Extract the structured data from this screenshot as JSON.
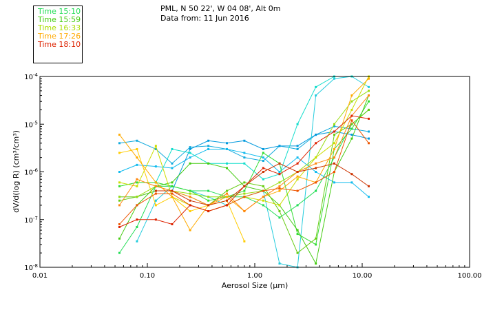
{
  "header": {
    "line1": "PML, N 50 22', W 04 08', Alt 0m",
    "line2": "Data from: 11 Jun 2016"
  },
  "legend": [
    {
      "label": "Time 15:10",
      "color": "#22dd55"
    },
    {
      "label": "Time 15:59",
      "color": "#44cc11"
    },
    {
      "label": "Time 16:33",
      "color": "#aadd00"
    },
    {
      "label": "Time 17:26",
      "color": "#ffaa00"
    },
    {
      "label": "Time 18:10",
      "color": "#dd2200"
    }
  ],
  "chart_data": {
    "type": "line",
    "x_scale": "log",
    "y_scale": "log",
    "xlim": [
      0.01,
      100
    ],
    "ylim": [
      1e-08,
      0.0001
    ],
    "xlabel": "Aerosol Size (µm)",
    "ylabel": "dV/d(log R) (cm³/cm³)",
    "x_ticks": [
      {
        "v": 0.01,
        "label": "0.01"
      },
      {
        "v": 0.1,
        "label": "0.10"
      },
      {
        "v": 1,
        "label": "1.00"
      },
      {
        "v": 10,
        "label": "10.00"
      },
      {
        "v": 100,
        "label": "100.00"
      }
    ],
    "y_ticks": [
      {
        "v": 0.0001,
        "base": "10",
        "exp": "-4"
      },
      {
        "v": 1e-05,
        "base": "10",
        "exp": "-5"
      },
      {
        "v": 1e-06,
        "base": "10",
        "exp": "-6"
      },
      {
        "v": 1e-07,
        "base": "10",
        "exp": "-7"
      },
      {
        "v": 1e-08,
        "base": "10",
        "exp": "-8"
      }
    ],
    "x": [
      0.055,
      0.08,
      0.12,
      0.17,
      0.25,
      0.37,
      0.55,
      0.8,
      1.2,
      1.7,
      2.5,
      3.7,
      5.5,
      8,
      11.5
    ],
    "series": [
      {
        "color": "#11aadd",
        "values": [
          4e-06,
          4.5e-06,
          3e-06,
          1.5e-06,
          3.3e-06,
          3.5e-06,
          3e-06,
          2e-06,
          1.7e-06,
          3.5e-06,
          3e-06,
          6e-06,
          9e-06,
          8e-06,
          7e-06
        ]
      },
      {
        "color": "#11bbee",
        "values": [
          1e-06,
          1.4e-06,
          1.3e-06,
          1.2e-06,
          2e-06,
          3e-06,
          3e-06,
          2.5e-06,
          2e-06,
          1e-06,
          2e-06,
          1e-06,
          6e-07,
          6e-07,
          3e-07
        ]
      },
      {
        "color": "#0099dd",
        "values": [
          3e-07,
          3e-07,
          4e-07,
          4e-07,
          3e-06,
          4.5e-06,
          4e-06,
          4.5e-06,
          3e-06,
          3.5e-06,
          3.5e-06,
          6e-06,
          7e-06,
          6e-06,
          5e-06
        ]
      },
      {
        "color": "#22ccdd",
        "values": [
          null,
          3.5e-08,
          2.5e-07,
          5e-07,
          4e-07,
          3e-07,
          2e-07,
          3e-07,
          4e-07,
          1.2e-08,
          1e-08,
          4e-05,
          9e-05,
          0.0001,
          6e-05
        ]
      },
      {
        "color": "#11ddcc",
        "values": [
          null,
          null,
          6e-07,
          3e-06,
          2.5e-06,
          1.5e-06,
          1.5e-06,
          1.5e-06,
          7e-07,
          9e-07,
          1e-05,
          6e-05,
          0.0001,
          0.00011,
          null
        ]
      },
      {
        "color": "#22dd55",
        "values": [
          2e-08,
          7e-08,
          5e-07,
          5e-07,
          4e-07,
          4e-07,
          3e-07,
          3e-07,
          2e-07,
          1.1e-07,
          2e-07,
          4e-07,
          2e-06,
          1e-05,
          2e-05
        ]
      },
      {
        "color": "#33dd33",
        "values": [
          5e-07,
          6e-07,
          6e-07,
          5e-07,
          4e-07,
          2.5e-07,
          3e-07,
          4e-07,
          2.5e-06,
          1.5e-06,
          5e-08,
          3e-08,
          3e-06,
          8e-06,
          3e-05
        ]
      },
      {
        "color": "#44cc11",
        "values": [
          4e-08,
          2e-07,
          5e-07,
          6e-07,
          1.5e-06,
          1.5e-06,
          1.2e-06,
          5e-07,
          4e-07,
          2e-07,
          6e-08,
          1.2e-08,
          1e-06,
          5e-06,
          4e-05
        ]
      },
      {
        "color": "#66cc11",
        "values": [
          2.5e-07,
          3e-07,
          4e-07,
          4e-07,
          3e-07,
          2e-07,
          4e-07,
          6e-07,
          5e-07,
          1.5e-07,
          2e-08,
          4e-08,
          6e-06,
          1e-05,
          2e-05
        ]
      },
      {
        "color": "#99dd11",
        "values": [
          3e-07,
          3e-07,
          5e-07,
          4e-07,
          3.5e-07,
          3e-07,
          3e-07,
          3.5e-07,
          4e-07,
          6e-07,
          1e-06,
          2e-06,
          1e-05,
          3e-05,
          5e-05
        ]
      },
      {
        "color": "#ccdd00",
        "values": [
          6e-07,
          5e-07,
          3.5e-06,
          3e-07,
          2e-07,
          1.5e-07,
          2e-07,
          3e-07,
          2.5e-07,
          2e-07,
          7e-07,
          2e-06,
          4e-06,
          2e-05,
          0.0001
        ]
      },
      {
        "color": "#ffcc00",
        "values": [
          2.5e-06,
          3e-06,
          2e-07,
          3e-07,
          1.5e-07,
          2e-07,
          2.5e-07,
          3.5e-08,
          null,
          null,
          null,
          null,
          null,
          null,
          null
        ]
      },
      {
        "color": "#ffaa00",
        "values": [
          6e-06,
          2e-06,
          6e-07,
          3e-07,
          6e-08,
          2e-07,
          3e-07,
          1.5e-07,
          3e-07,
          4e-07,
          8e-07,
          6e-07,
          3e-06,
          4e-05,
          9e-05
        ]
      },
      {
        "color": "#ff8811",
        "values": [
          2e-07,
          7e-07,
          5e-07,
          4e-07,
          3e-07,
          2e-07,
          3.5e-07,
          1.5e-07,
          3e-07,
          5e-07,
          1e-06,
          1.5e-06,
          2e-06,
          1.5e-05,
          4e-05
        ]
      },
      {
        "color": "#ee5500",
        "values": [
          8e-08,
          2e-07,
          3.5e-07,
          3.5e-07,
          2e-07,
          1.5e-07,
          2e-07,
          3e-07,
          4e-07,
          4.5e-07,
          4e-07,
          6e-07,
          1e-06,
          1.2e-05,
          4e-06
        ]
      },
      {
        "color": "#dd2200",
        "values": [
          7e-08,
          1e-07,
          1e-07,
          8e-08,
          2e-07,
          1.5e-07,
          2e-07,
          5e-07,
          1.2e-06,
          9e-07,
          1.5e-06,
          4e-06,
          7e-06,
          1.5e-05,
          1.3e-05
        ]
      },
      {
        "color": "#cc3300",
        "values": [
          null,
          null,
          4e-07,
          4e-07,
          2.5e-07,
          2e-07,
          2.5e-07,
          5e-07,
          1e-06,
          1.5e-06,
          1e-06,
          1.2e-06,
          1.5e-06,
          9e-07,
          5e-07
        ]
      }
    ]
  }
}
